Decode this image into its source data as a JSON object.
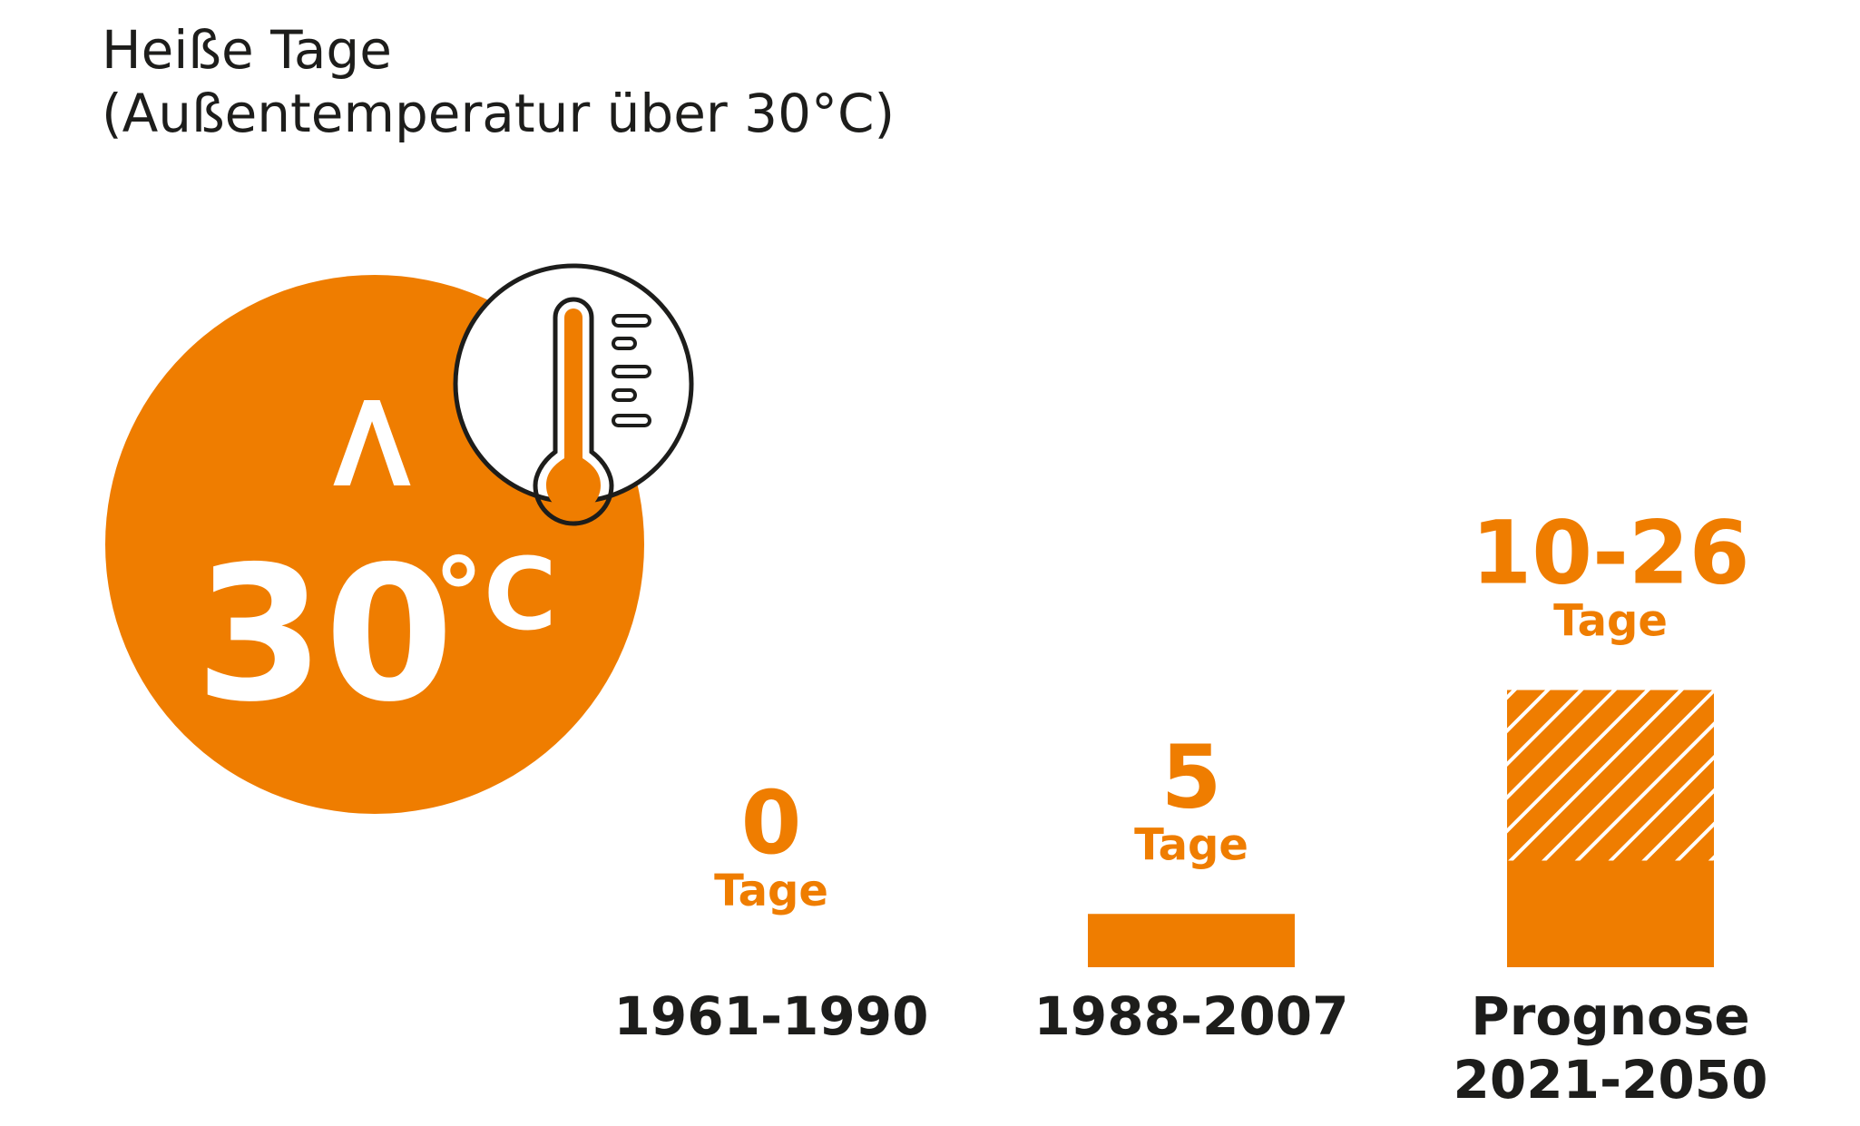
{
  "colors": {
    "accent": "#ef7d00",
    "text": "#1d1d1b",
    "white": "#ffffff"
  },
  "header": {
    "title": "Heiße Tage",
    "subtitle": "(Außentemperatur über 30°C)"
  },
  "badge": {
    "symbol": ">",
    "number": "30",
    "unit": "°C",
    "icon": "thermometer-icon"
  },
  "chart_data": {
    "type": "bar",
    "categories": [
      "1961-1990",
      "1988-2007",
      "Prognose 2021-2050"
    ],
    "category_lines": [
      [
        "1961-1990"
      ],
      [
        "1988-2007"
      ],
      [
        "Prognose",
        "2021-2050"
      ]
    ],
    "values": [
      0,
      5,
      10
    ],
    "value_labels": [
      "0",
      "5",
      "10-26"
    ],
    "range_upper": [
      null,
      null,
      26
    ],
    "unit_label": "Tage",
    "grid": false,
    "legend": "none",
    "ylim": [
      0,
      26
    ]
  }
}
